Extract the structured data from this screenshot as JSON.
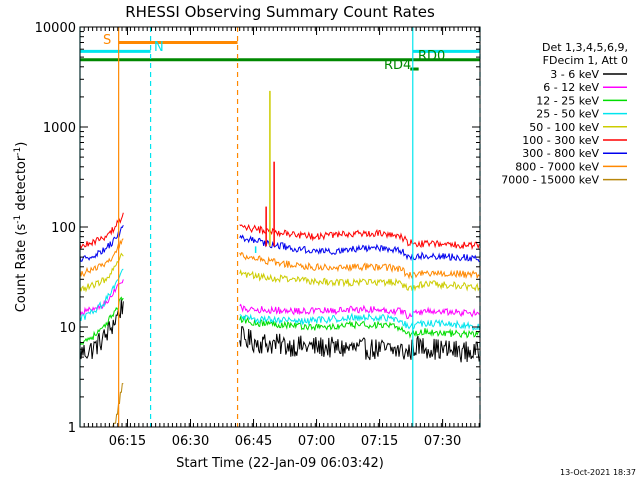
{
  "chart_data": {
    "type": "line",
    "title": "RHESSI Observing Summary Count Rates",
    "xlabel": "Start Time (22-Jan-09 06:03:42)",
    "ylabel": "Count Rate (s",
    "ylabel_sup1": "-1",
    "ylabel_mid": " detector",
    "ylabel_sup2": "-1",
    "ylabel_end": ")",
    "y_scale": "log",
    "ylim": [
      1,
      10000
    ],
    "xlim_minutes": [
      0,
      95.2
    ],
    "x_ticks": [
      {
        "minute": 11.3,
        "label": "06:15"
      },
      {
        "minute": 26.3,
        "label": "06:30"
      },
      {
        "minute": 41.3,
        "label": "06:45"
      },
      {
        "minute": 56.3,
        "label": "07:00"
      },
      {
        "minute": 71.3,
        "label": "07:15"
      },
      {
        "minute": 86.3,
        "label": "07:30"
      }
    ],
    "y_ticks": [
      {
        "value": 1,
        "label": "1"
      },
      {
        "value": 10,
        "label": "10"
      },
      {
        "value": 100,
        "label": "100"
      },
      {
        "value": 1000,
        "label": "1000"
      },
      {
        "value": 10000,
        "label": "10000"
      }
    ],
    "grid": false,
    "legend_position": "right",
    "legend_header": [
      "Det 1,3,4,5,6,9,",
      "FDecim 1, Att 0"
    ],
    "series": [
      {
        "name": "3 - 6 keV",
        "color": "#000000",
        "segments": [
          {
            "x": [
              0,
              3,
              6,
              8,
              10.3
            ],
            "y": [
              5.5,
              6,
              8,
              11,
              17
            ]
          },
          {
            "x": [
              38,
              42,
              50,
              60,
              70,
              76.5,
              78,
              80,
              85,
              95
            ],
            "y": [
              8,
              7,
              6.5,
              6.2,
              6,
              5.8,
              5.5,
              6.5,
              6,
              5.5
            ]
          }
        ]
      },
      {
        "name": "6 - 12 keV",
        "color": "#ff00ff",
        "segments": [
          {
            "x": [
              0,
              3,
              6,
              8,
              10.3
            ],
            "y": [
              14,
              15,
              17,
              22,
              30
            ]
          },
          {
            "x": [
              38,
              42,
              50,
              55,
              60,
              65,
              70,
              75,
              76.5,
              78,
              82,
              90,
              95
            ],
            "y": [
              15.5,
              15,
              14.5,
              14.5,
              14.5,
              15,
              15,
              14.5,
              14.5,
              13,
              14.5,
              14,
              13.5
            ]
          }
        ]
      },
      {
        "name": "12 - 25 keV",
        "color": "#00dd00",
        "segments": [
          {
            "x": [
              0,
              3,
              6,
              8,
              10.3
            ],
            "y": [
              7,
              8,
              10,
              14,
              20
            ]
          },
          {
            "x": [
              38,
              42,
              50,
              55,
              60,
              65,
              70,
              75,
              76.5,
              78,
              82,
              90,
              95
            ],
            "y": [
              12,
              11,
              10.5,
              10,
              10,
              10.5,
              10.5,
              10,
              9.8,
              8.5,
              9,
              8.5,
              8.5
            ]
          }
        ]
      },
      {
        "name": "25 - 50 keV",
        "color": "#00e5ee",
        "segments": [
          {
            "x": [
              0,
              3,
              6,
              8,
              10.3
            ],
            "y": [
              12,
              14,
              18,
              25,
              40
            ]
          },
          {
            "x": [
              38,
              42,
              50,
              55,
              60,
              65,
              70,
              75,
              76.5,
              78,
              82,
              90,
              95
            ],
            "y": [
              12.5,
              12,
              11.5,
              11.5,
              12,
              12.5,
              12.5,
              12,
              11.5,
              10,
              11,
              10.5,
              10
            ]
          }
        ]
      },
      {
        "name": "50 - 100 keV",
        "color": "#cccc00",
        "segments": [
          {
            "x": [
              0,
              3,
              6,
              8,
              10.3
            ],
            "y": [
              24,
              26,
              30,
              38,
              55
            ]
          },
          {
            "x": [
              38,
              42,
              50,
              55,
              60,
              65,
              70,
              75,
              76.5,
              78,
              82,
              90,
              95
            ],
            "y": [
              35,
              32,
              30,
              29,
              28,
              28,
              28,
              28,
              27,
              24,
              27,
              26,
              25
            ]
          }
        ]
      },
      {
        "name": "100 - 300 keV",
        "color": "#ff0000",
        "segments": [
          {
            "x": [
              0,
              3,
              6,
              8,
              10.3
            ],
            "y": [
              65,
              70,
              80,
              95,
              130
            ]
          },
          {
            "x": [
              38,
              42,
              50,
              55,
              60,
              65,
              70,
              75,
              76.5,
              78,
              82,
              90,
              95
            ],
            "y": [
              100,
              95,
              85,
              80,
              82,
              86,
              86,
              84,
              80,
              70,
              68,
              66,
              65
            ]
          }
        ]
      },
      {
        "name": "300 - 800 keV",
        "color": "#0000ee",
        "segments": [
          {
            "x": [
              0,
              3,
              6,
              8,
              10.3
            ],
            "y": [
              48,
              52,
              60,
              72,
              100
            ]
          },
          {
            "x": [
              38,
              42,
              50,
              55,
              60,
              65,
              70,
              75,
              76.5,
              78,
              82,
              90,
              95
            ],
            "y": [
              80,
              72,
              62,
              58,
              57,
              60,
              62,
              60,
              58,
              50,
              52,
              50,
              48
            ]
          }
        ]
      },
      {
        "name": "800 - 7000 keV",
        "color": "#ff8800",
        "segments": [
          {
            "x": [
              0,
              3,
              6,
              8,
              10.3
            ],
            "y": [
              34,
              37,
              43,
              52,
              75
            ]
          },
          {
            "x": [
              38,
              42,
              50,
              55,
              60,
              65,
              70,
              75,
              76.5,
              78,
              82,
              90,
              95
            ],
            "y": [
              52,
              48,
              42,
              40,
              39,
              40,
              40,
              39,
              38,
              33,
              35,
              34,
              33
            ]
          }
        ]
      },
      {
        "name": "7000 - 15000 keV",
        "color": "#b8860b",
        "segments": [
          {
            "x": [
              7.8,
              8.6,
              9.2,
              9.8,
              10.3
            ],
            "y": [
              1,
              1.4,
              1.9,
              2.6,
              2.9
            ]
          }
        ]
      }
    ],
    "spikes": [
      {
        "x": 45.2,
        "y": 2300,
        "color": "#cccc00"
      },
      {
        "x": 46.2,
        "y": 450,
        "color": "#ff0000"
      },
      {
        "x": 44.3,
        "y": 160,
        "color": "#ff0000"
      },
      {
        "x": 41.8,
        "y": 55,
        "color": "#00e5ee"
      }
    ],
    "annotations": [
      {
        "text": "S",
        "color": "#ff8800"
      },
      {
        "text": "N",
        "color": "#00e5ee"
      },
      {
        "text": "RD0",
        "color": "#008800"
      },
      {
        "text": "RD4",
        "color": "#008800"
      }
    ],
    "flag_bars": [
      {
        "name": "SAA",
        "color": "#ff8800",
        "x_start": 9.2,
        "x_end": 37.5,
        "y": 7000
      },
      {
        "name": "Night",
        "color": "#00e5ee",
        "x_start": 0,
        "x_end": 16.8,
        "y": 5700
      },
      {
        "name": "Night",
        "color": "#00e5ee",
        "x_start": 79.2,
        "x_end": 95.2,
        "y": 5700
      },
      {
        "name": "Attenuator",
        "color": "#008800",
        "x_start": 0,
        "x_end": 95.2,
        "y": 4700
      }
    ],
    "vertical_markers": [
      {
        "x": 0,
        "color": "#00e5ee",
        "dashed": false
      },
      {
        "x": 9.2,
        "color": "#ff8800",
        "dashed": false
      },
      {
        "x": 16.8,
        "color": "#00e5ee",
        "dashed": true
      },
      {
        "x": 37.5,
        "color": "#ff8800",
        "dashed": true
      },
      {
        "x": 79.2,
        "color": "#00e5ee",
        "dashed": false
      },
      {
        "x": 95.2,
        "color": "#00e5ee",
        "dashed": true
      }
    ],
    "footer_date": "13-Oct-2021 18:37"
  }
}
